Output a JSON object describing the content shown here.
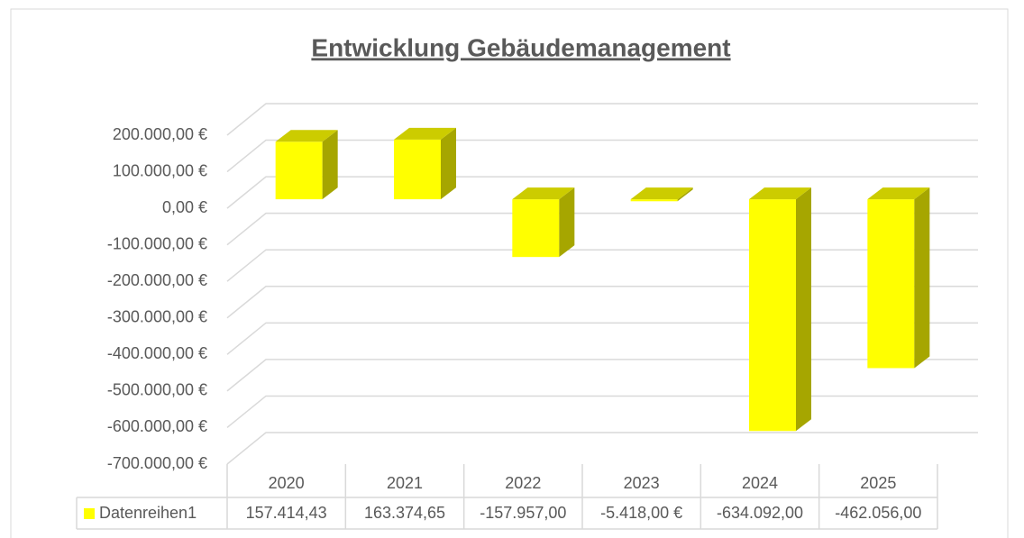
{
  "chart_data": {
    "type": "bar3d",
    "title": "Entwicklung Gebäudemanagement",
    "categories": [
      "2020",
      "2021",
      "2022",
      "2023",
      "2024",
      "2025"
    ],
    "series": [
      {
        "name": "Datenreihen1",
        "color": "#ffff00",
        "values": [
          157414.43,
          163374.65,
          -157957,
          -5418,
          -634092,
          -462056
        ],
        "value_labels": [
          "157.414,43",
          "163.374,65",
          "-157.957,00",
          "-5.418,00 €",
          "-634.092,00",
          "-462.056,00"
        ]
      }
    ],
    "ylim": [
      -700000,
      200000
    ],
    "yticks": [
      {
        "value": 200000,
        "label": "200.000,00 €"
      },
      {
        "value": 100000,
        "label": "100.000,00 €"
      },
      {
        "value": 0,
        "label": "0,00 €"
      },
      {
        "value": -100000,
        "label": "-100.000,00 €"
      },
      {
        "value": -200000,
        "label": "-200.000,00 €"
      },
      {
        "value": -300000,
        "label": "-300.000,00 €"
      },
      {
        "value": -400000,
        "label": "-400.000,00 €"
      },
      {
        "value": -500000,
        "label": "-500.000,00 €"
      },
      {
        "value": -600000,
        "label": "-600.000,00 €"
      },
      {
        "value": -700000,
        "label": "-700.000,00 €"
      }
    ],
    "grid": true,
    "data_table": true
  }
}
